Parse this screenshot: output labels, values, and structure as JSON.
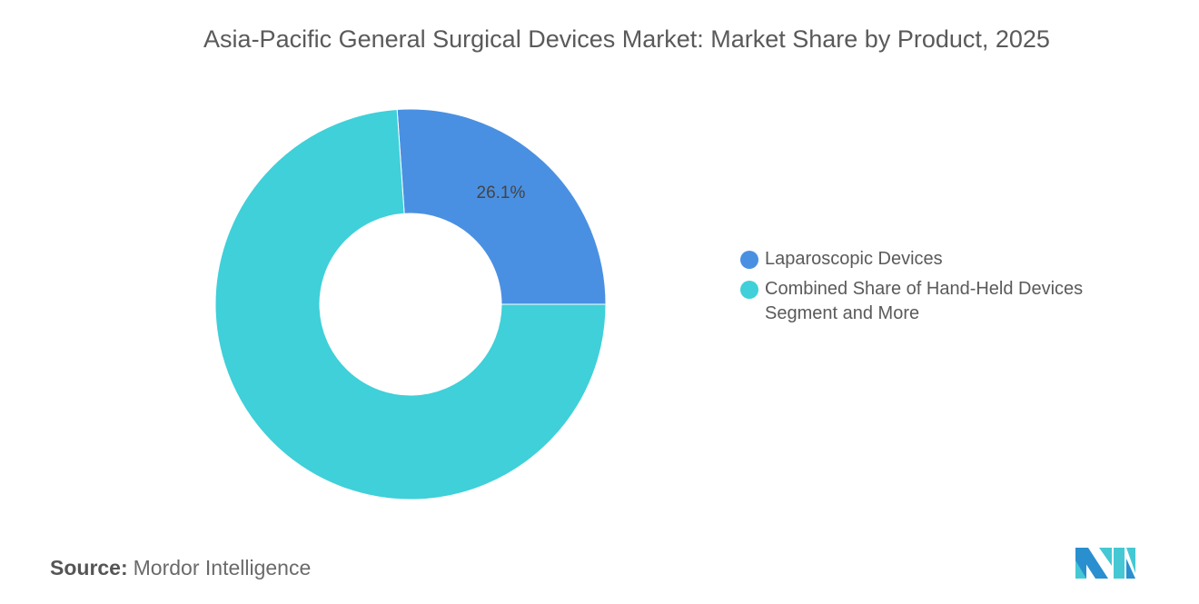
{
  "chart_data": {
    "type": "pie",
    "donut": true,
    "title": "Asia-Pacific General Surgical Devices Market: Market Share by Product, 2025",
    "slices": [
      {
        "name": "Laparoscopic Devices",
        "value": 26.1,
        "label": "26.1%",
        "color": "#4a90e2"
      },
      {
        "name": "Combined Share of Hand-Held Devices Segment and More",
        "value": 73.9,
        "label": "",
        "color": "#3fd0d9"
      }
    ],
    "legend_placement": "right"
  },
  "source": {
    "label": "Source:",
    "value": "Mordor Intelligence"
  },
  "logo_text": "Mordor Intelligence"
}
